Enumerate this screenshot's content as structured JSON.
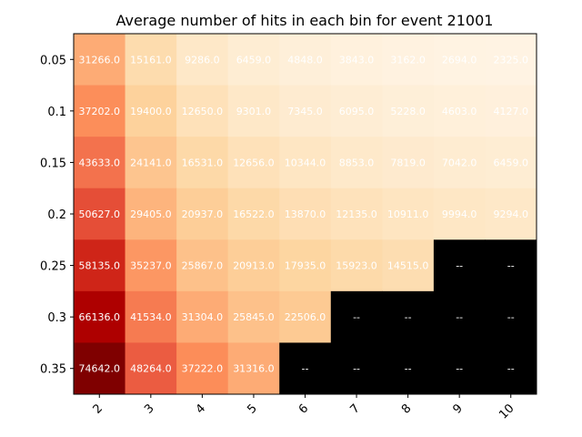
{
  "chart_data": {
    "type": "heatmap",
    "title": "Average number of hits in each bin for event 21001",
    "xlabel": "",
    "ylabel": "",
    "x_categories": [
      "2",
      "3",
      "4",
      "5",
      "6",
      "7",
      "8",
      "9",
      "10"
    ],
    "y_categories": [
      "0.05",
      "0.1",
      "0.15",
      "0.2",
      "0.25",
      "0.3",
      "0.35"
    ],
    "colormap": "OrRd",
    "missing_color": "#000000",
    "missing_label": "--",
    "vmin": 0,
    "vmax": 74642,
    "values": [
      [
        31266.0,
        15161.0,
        9286.0,
        6459.0,
        4848.0,
        3843.0,
        3162.0,
        2694.0,
        2325.0
      ],
      [
        37202.0,
        19400.0,
        12650.0,
        9301.0,
        7345.0,
        6095.0,
        5228.0,
        4603.0,
        4127.0
      ],
      [
        43633.0,
        24141.0,
        16531.0,
        12656.0,
        10344.0,
        8853.0,
        7819.0,
        7042.0,
        6459.0
      ],
      [
        50627.0,
        29405.0,
        20937.0,
        16522.0,
        13870.0,
        12135.0,
        10911.0,
        9994.0,
        9294.0
      ],
      [
        58135.0,
        35237.0,
        25867.0,
        20913.0,
        17935.0,
        15923.0,
        14515.0,
        null,
        null
      ],
      [
        66136.0,
        41534.0,
        31304.0,
        25845.0,
        22506.0,
        null,
        null,
        null,
        null
      ],
      [
        74642.0,
        48264.0,
        37222.0,
        31316.0,
        null,
        null,
        null,
        null,
        null
      ]
    ],
    "grid": false,
    "legend": "none"
  }
}
